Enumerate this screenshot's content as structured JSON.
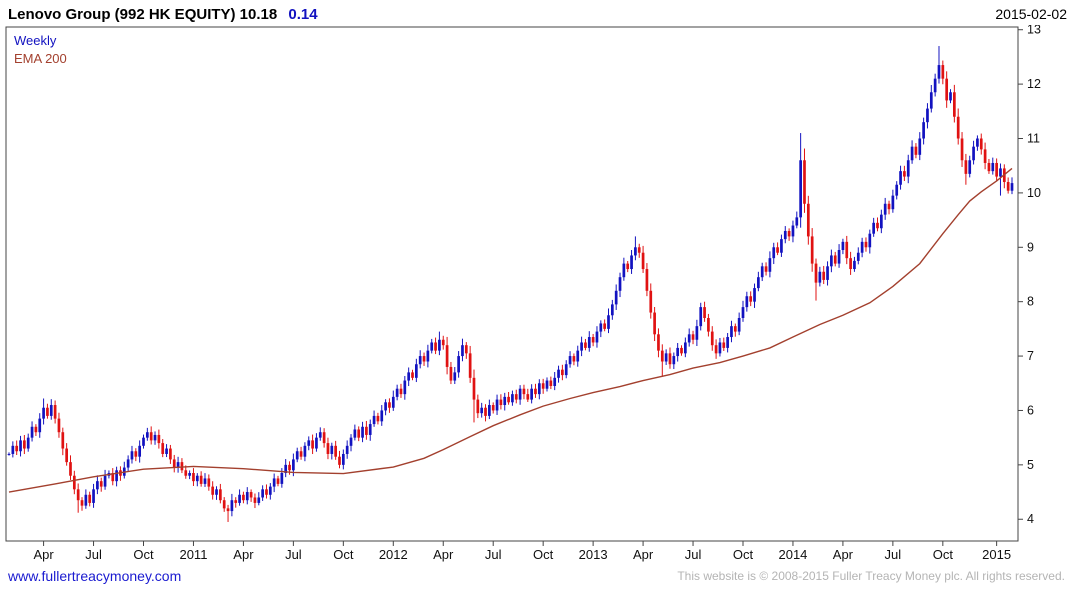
{
  "header": {
    "title_main": "Lenovo Group (992 HK EQUITY) 10.18",
    "change": "0.14",
    "date": "2015-02-02"
  },
  "legend": {
    "frequency": "Weekly",
    "ma": "EMA 200"
  },
  "footer": {
    "site": "www.fullertreacymoney.com",
    "copyright": "This website is © 2008-2015 Fuller Treacy Money plc. All rights reserved."
  },
  "colors": {
    "up": "#1212c0",
    "down": "#e01212",
    "ema": "#a3402e",
    "axis": "#444444",
    "tick_text": "#111111",
    "title": "#000000",
    "change_text": "#1212c0",
    "link": "#1a1ad0",
    "copyright_text": "#b4b4b4"
  },
  "chart_data": {
    "type": "candlestick",
    "instrument": "Lenovo Group (992 HK EQUITY)",
    "frequency": "Weekly",
    "overlay": "EMA 200",
    "last_price": 10.18,
    "change": 0.14,
    "date": "2015-02-02",
    "x_start": "2010-02",
    "x_end": "2015-02",
    "ylim": [
      3.6,
      13.05
    ],
    "yticks": [
      4,
      5,
      6,
      7,
      8,
      9,
      10,
      11,
      12,
      13
    ],
    "xticks": [
      {
        "label": "Apr",
        "week": 9
      },
      {
        "label": "Jul",
        "week": 22
      },
      {
        "label": "Oct",
        "week": 35
      },
      {
        "label": "2011",
        "week": 48
      },
      {
        "label": "Apr",
        "week": 61
      },
      {
        "label": "Jul",
        "week": 74
      },
      {
        "label": "Oct",
        "week": 87
      },
      {
        "label": "2012",
        "week": 100
      },
      {
        "label": "Apr",
        "week": 113
      },
      {
        "label": "Jul",
        "week": 126
      },
      {
        "label": "Oct",
        "week": 139
      },
      {
        "label": "2013",
        "week": 152
      },
      {
        "label": "Apr",
        "week": 165
      },
      {
        "label": "Jul",
        "week": 178
      },
      {
        "label": "Oct",
        "week": 191
      },
      {
        "label": "2014",
        "week": 204
      },
      {
        "label": "Apr",
        "week": 217
      },
      {
        "label": "Jul",
        "week": 230
      },
      {
        "label": "Oct",
        "week": 243
      },
      {
        "label": "2015",
        "week": 257
      }
    ],
    "weekly_closes": [
      5.2,
      5.35,
      5.25,
      5.45,
      5.3,
      5.5,
      5.7,
      5.6,
      5.85,
      6.05,
      5.9,
      6.1,
      5.85,
      5.6,
      5.3,
      5.05,
      4.8,
      4.55,
      4.35,
      4.25,
      4.45,
      4.3,
      4.55,
      4.7,
      4.6,
      4.8,
      4.85,
      4.7,
      4.9,
      4.8,
      4.95,
      5.1,
      5.25,
      5.15,
      5.35,
      5.5,
      5.6,
      5.45,
      5.55,
      5.4,
      5.2,
      5.3,
      5.1,
      4.95,
      5.05,
      4.9,
      4.8,
      4.85,
      4.7,
      4.8,
      4.65,
      4.75,
      4.6,
      4.45,
      4.55,
      4.35,
      4.2,
      4.15,
      4.35,
      4.3,
      4.45,
      4.35,
      4.5,
      4.4,
      4.3,
      4.4,
      4.55,
      4.45,
      4.6,
      4.75,
      4.65,
      4.85,
      5.0,
      4.9,
      5.1,
      5.25,
      5.15,
      5.35,
      5.45,
      5.3,
      5.5,
      5.6,
      5.4,
      5.2,
      5.35,
      5.15,
      5.0,
      5.2,
      5.35,
      5.5,
      5.65,
      5.5,
      5.7,
      5.55,
      5.75,
      5.9,
      5.8,
      6.0,
      6.15,
      6.05,
      6.25,
      6.4,
      6.3,
      6.55,
      6.7,
      6.6,
      6.85,
      7.0,
      6.9,
      7.1,
      7.25,
      7.1,
      7.3,
      7.2,
      6.8,
      6.55,
      6.7,
      7.0,
      7.2,
      7.05,
      6.6,
      6.2,
      5.95,
      6.05,
      5.9,
      6.1,
      6.0,
      6.2,
      6.1,
      6.25,
      6.15,
      6.3,
      6.2,
      6.4,
      6.3,
      6.2,
      6.4,
      6.3,
      6.5,
      6.4,
      6.55,
      6.45,
      6.6,
      6.75,
      6.65,
      6.85,
      7.0,
      6.9,
      7.1,
      7.25,
      7.15,
      7.35,
      7.25,
      7.45,
      7.6,
      7.5,
      7.75,
      7.95,
      8.2,
      8.45,
      8.7,
      8.6,
      8.85,
      9.0,
      8.9,
      8.6,
      8.2,
      7.8,
      7.4,
      7.1,
      6.9,
      7.05,
      6.85,
      7.0,
      7.15,
      7.05,
      7.25,
      7.4,
      7.3,
      7.55,
      7.9,
      7.7,
      7.45,
      7.2,
      7.05,
      7.25,
      7.15,
      7.35,
      7.55,
      7.45,
      7.7,
      7.9,
      8.1,
      8.0,
      8.25,
      8.45,
      8.65,
      8.55,
      8.8,
      9.0,
      8.9,
      9.15,
      9.3,
      9.2,
      9.4,
      9.55,
      10.6,
      9.8,
      9.2,
      8.7,
      8.35,
      8.55,
      8.4,
      8.65,
      8.85,
      8.7,
      8.95,
      9.1,
      8.8,
      8.6,
      8.75,
      8.9,
      9.1,
      9.0,
      9.25,
      9.45,
      9.35,
      9.6,
      9.8,
      9.7,
      9.95,
      10.15,
      10.4,
      10.3,
      10.6,
      10.85,
      10.7,
      11.0,
      11.3,
      11.55,
      11.85,
      12.1,
      12.35,
      12.1,
      11.7,
      11.85,
      11.4,
      11.0,
      10.6,
      10.35,
      10.6,
      10.85,
      11.0,
      10.8,
      10.55,
      10.4,
      10.55,
      10.3,
      10.45,
      10.2,
      10.04,
      10.18
    ],
    "wick_overrides": {
      "9": {
        "high": 6.22
      },
      "18": {
        "low": 4.12
      },
      "36": {
        "high": 5.68
      },
      "57": {
        "low": 3.95
      },
      "112": {
        "high": 7.45
      },
      "118": {
        "high": 7.32
      },
      "121": {
        "low": 5.78
      },
      "163": {
        "high": 9.2
      },
      "170": {
        "low": 6.62
      },
      "180": {
        "high": 7.98
      },
      "206": {
        "high": 11.1
      },
      "210": {
        "low": 8.02
      },
      "242": {
        "high": 12.7
      },
      "249": {
        "low": 10.15
      },
      "258": {
        "low": 9.95
      }
    },
    "ema_points": [
      [
        0,
        4.5
      ],
      [
        12,
        4.65
      ],
      [
        22,
        4.78
      ],
      [
        35,
        4.92
      ],
      [
        48,
        4.97
      ],
      [
        61,
        4.93
      ],
      [
        74,
        4.86
      ],
      [
        87,
        4.84
      ],
      [
        100,
        4.96
      ],
      [
        108,
        5.12
      ],
      [
        113,
        5.28
      ],
      [
        120,
        5.52
      ],
      [
        126,
        5.72
      ],
      [
        133,
        5.92
      ],
      [
        139,
        6.08
      ],
      [
        146,
        6.22
      ],
      [
        152,
        6.33
      ],
      [
        159,
        6.44
      ],
      [
        165,
        6.55
      ],
      [
        172,
        6.66
      ],
      [
        178,
        6.78
      ],
      [
        185,
        6.88
      ],
      [
        191,
        7.0
      ],
      [
        198,
        7.15
      ],
      [
        204,
        7.35
      ],
      [
        211,
        7.58
      ],
      [
        217,
        7.75
      ],
      [
        224,
        7.98
      ],
      [
        230,
        8.28
      ],
      [
        237,
        8.7
      ],
      [
        243,
        9.25
      ],
      [
        247,
        9.6
      ],
      [
        250,
        9.85
      ],
      [
        253,
        10.02
      ],
      [
        257,
        10.22
      ],
      [
        261,
        10.45
      ]
    ]
  }
}
